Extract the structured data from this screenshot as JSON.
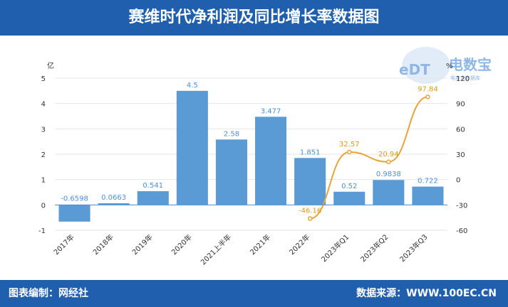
{
  "header": {
    "title": "赛维时代净利润及同比增长率数据图"
  },
  "footer": {
    "left": "图表编制：网经社",
    "right": "数据来源：WWW.100EC.CN"
  },
  "logo": {
    "text": "电数宝",
    "sub": "电商大数据库",
    "mark": "eDT"
  },
  "chart_data": {
    "type": "bar",
    "categories": [
      "2017年",
      "2018年",
      "2019年",
      "2020年",
      "2021上半年",
      "2021年",
      "2022年",
      "2023年Q1",
      "2023年Q2",
      "2023年Q3"
    ],
    "series": [
      {
        "type": "bar",
        "values": [
          -0.6598,
          0.0663,
          0.541,
          4.5,
          2.58,
          3.477,
          1.851,
          0.52,
          0.9838,
          0.722
        ],
        "labels": [
          "-0.6598",
          "0.0663",
          "0.541",
          "4.5",
          "2.58",
          "3.477",
          "1.851",
          "0.52",
          "0.9838",
          "0.722"
        ]
      },
      {
        "type": "line",
        "axis": "right",
        "values": [
          null,
          null,
          null,
          null,
          null,
          null,
          -46.16,
          32.57,
          20.94,
          97.84
        ],
        "labels": [
          "",
          "",
          "",
          "",
          "",
          "",
          "-46.16",
          "32.57",
          "20.94",
          "97.84"
        ]
      }
    ],
    "ylabel": "亿",
    "ylabel_right": "%",
    "ylim": [
      -1,
      5
    ],
    "yticks": [
      "5",
      "4",
      "3",
      "2",
      "1",
      "0",
      "-1"
    ],
    "ylim_right": [
      -60,
      120
    ],
    "yticks_right": [
      "120",
      "90",
      "60",
      "30",
      "0",
      "-30",
      "-60"
    ],
    "colors": {
      "bar": "#5b9bd5",
      "line": "#e8a33a",
      "bar_label": "#4a90d9",
      "line_label": "#e09a1a"
    }
  }
}
